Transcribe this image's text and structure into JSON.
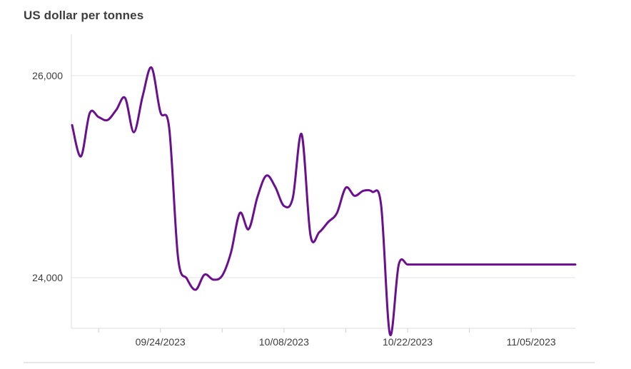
{
  "chart_data": {
    "type": "line",
    "title": "US dollar per tonnes",
    "xlabel": "",
    "ylabel": "",
    "ylim": [
      23500,
      26400
    ],
    "y_ticks": [
      24000,
      26000
    ],
    "y_tick_labels": [
      "24,000",
      "26,000"
    ],
    "x_tick_labels": [
      "09/24/2023",
      "10/08/2023",
      "10/22/2023",
      "11/05/2023"
    ],
    "grid": "horizontal",
    "line_color": "#6a0f8e",
    "series": [
      {
        "x": [
          "09/14/2023",
          "09/15/2023",
          "09/16/2023",
          "09/17/2023",
          "09/18/2023",
          "09/19/2023",
          "09/20/2023",
          "09/21/2023",
          "09/22/2023",
          "09/23/2023",
          "09/24/2023",
          "09/25/2023",
          "09/26/2023",
          "09/27/2023",
          "09/28/2023",
          "09/29/2023",
          "09/30/2023",
          "10/01/2023",
          "10/02/2023",
          "10/03/2023",
          "10/04/2023",
          "10/05/2023",
          "10/06/2023",
          "10/07/2023",
          "10/08/2023",
          "10/09/2023",
          "10/10/2023",
          "10/11/2023",
          "10/12/2023",
          "10/13/2023",
          "10/14/2023",
          "10/15/2023",
          "10/16/2023",
          "10/17/2023",
          "10/18/2023",
          "10/19/2023",
          "10/20/2023",
          "10/21/2023",
          "10/22/2023",
          "10/23/2023",
          "10/24/2023",
          "10/25/2023",
          "10/26/2023",
          "10/27/2023",
          "10/28/2023",
          "10/29/2023",
          "10/30/2023",
          "10/31/2023",
          "11/01/2023",
          "11/02/2023",
          "11/03/2023",
          "11/04/2023",
          "11/05/2023",
          "11/06/2023",
          "11/07/2023",
          "11/08/2023",
          "11/09/2023",
          "11/10/2023"
        ],
        "values": [
          25510,
          25200,
          25630,
          25590,
          25560,
          25660,
          25780,
          25440,
          25800,
          26080,
          25640,
          25480,
          24200,
          23990,
          23880,
          24030,
          23980,
          24020,
          24250,
          24640,
          24480,
          24800,
          25010,
          24900,
          24710,
          24790,
          25420,
          24420,
          24450,
          24550,
          24640,
          24890,
          24810,
          24860,
          24850,
          24720,
          23440,
          24130,
          24130,
          24130,
          24130,
          24130,
          24130,
          24130,
          24130,
          24130,
          24130,
          24130,
          24130,
          24130,
          24130,
          24130,
          24130,
          24130,
          24130,
          24130,
          24130,
          24130
        ]
      }
    ]
  }
}
